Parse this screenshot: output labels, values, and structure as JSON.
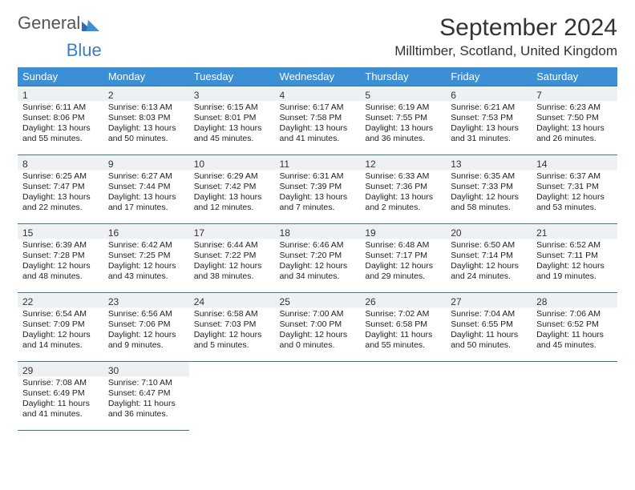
{
  "logo": {
    "text1": "General",
    "text2": "Blue"
  },
  "title": "September 2024",
  "subtitle": "Milltimber, Scotland, United Kingdom",
  "colors": {
    "header_bg": "#3b8fd4",
    "header_text": "#ffffff",
    "rule": "#3b6fa8",
    "daystrip": "#eef1f4",
    "brand_blue": "#3b7fc4",
    "brand_gray": "#555555"
  },
  "day_headers": [
    "Sunday",
    "Monday",
    "Tuesday",
    "Wednesday",
    "Thursday",
    "Friday",
    "Saturday"
  ],
  "weeks": [
    [
      {
        "n": "1",
        "sr": "6:11 AM",
        "ss": "8:06 PM",
        "dl": "13 hours and 55 minutes."
      },
      {
        "n": "2",
        "sr": "6:13 AM",
        "ss": "8:03 PM",
        "dl": "13 hours and 50 minutes."
      },
      {
        "n": "3",
        "sr": "6:15 AM",
        "ss": "8:01 PM",
        "dl": "13 hours and 45 minutes."
      },
      {
        "n": "4",
        "sr": "6:17 AM",
        "ss": "7:58 PM",
        "dl": "13 hours and 41 minutes."
      },
      {
        "n": "5",
        "sr": "6:19 AM",
        "ss": "7:55 PM",
        "dl": "13 hours and 36 minutes."
      },
      {
        "n": "6",
        "sr": "6:21 AM",
        "ss": "7:53 PM",
        "dl": "13 hours and 31 minutes."
      },
      {
        "n": "7",
        "sr": "6:23 AM",
        "ss": "7:50 PM",
        "dl": "13 hours and 26 minutes."
      }
    ],
    [
      {
        "n": "8",
        "sr": "6:25 AM",
        "ss": "7:47 PM",
        "dl": "13 hours and 22 minutes."
      },
      {
        "n": "9",
        "sr": "6:27 AM",
        "ss": "7:44 PM",
        "dl": "13 hours and 17 minutes."
      },
      {
        "n": "10",
        "sr": "6:29 AM",
        "ss": "7:42 PM",
        "dl": "13 hours and 12 minutes."
      },
      {
        "n": "11",
        "sr": "6:31 AM",
        "ss": "7:39 PM",
        "dl": "13 hours and 7 minutes."
      },
      {
        "n": "12",
        "sr": "6:33 AM",
        "ss": "7:36 PM",
        "dl": "13 hours and 2 minutes."
      },
      {
        "n": "13",
        "sr": "6:35 AM",
        "ss": "7:33 PM",
        "dl": "12 hours and 58 minutes."
      },
      {
        "n": "14",
        "sr": "6:37 AM",
        "ss": "7:31 PM",
        "dl": "12 hours and 53 minutes."
      }
    ],
    [
      {
        "n": "15",
        "sr": "6:39 AM",
        "ss": "7:28 PM",
        "dl": "12 hours and 48 minutes."
      },
      {
        "n": "16",
        "sr": "6:42 AM",
        "ss": "7:25 PM",
        "dl": "12 hours and 43 minutes."
      },
      {
        "n": "17",
        "sr": "6:44 AM",
        "ss": "7:22 PM",
        "dl": "12 hours and 38 minutes."
      },
      {
        "n": "18",
        "sr": "6:46 AM",
        "ss": "7:20 PM",
        "dl": "12 hours and 34 minutes."
      },
      {
        "n": "19",
        "sr": "6:48 AM",
        "ss": "7:17 PM",
        "dl": "12 hours and 29 minutes."
      },
      {
        "n": "20",
        "sr": "6:50 AM",
        "ss": "7:14 PM",
        "dl": "12 hours and 24 minutes."
      },
      {
        "n": "21",
        "sr": "6:52 AM",
        "ss": "7:11 PM",
        "dl": "12 hours and 19 minutes."
      }
    ],
    [
      {
        "n": "22",
        "sr": "6:54 AM",
        "ss": "7:09 PM",
        "dl": "12 hours and 14 minutes."
      },
      {
        "n": "23",
        "sr": "6:56 AM",
        "ss": "7:06 PM",
        "dl": "12 hours and 9 minutes."
      },
      {
        "n": "24",
        "sr": "6:58 AM",
        "ss": "7:03 PM",
        "dl": "12 hours and 5 minutes."
      },
      {
        "n": "25",
        "sr": "7:00 AM",
        "ss": "7:00 PM",
        "dl": "12 hours and 0 minutes."
      },
      {
        "n": "26",
        "sr": "7:02 AM",
        "ss": "6:58 PM",
        "dl": "11 hours and 55 minutes."
      },
      {
        "n": "27",
        "sr": "7:04 AM",
        "ss": "6:55 PM",
        "dl": "11 hours and 50 minutes."
      },
      {
        "n": "28",
        "sr": "7:06 AM",
        "ss": "6:52 PM",
        "dl": "11 hours and 45 minutes."
      }
    ],
    [
      {
        "n": "29",
        "sr": "7:08 AM",
        "ss": "6:49 PM",
        "dl": "11 hours and 41 minutes."
      },
      {
        "n": "30",
        "sr": "7:10 AM",
        "ss": "6:47 PM",
        "dl": "11 hours and 36 minutes."
      },
      null,
      null,
      null,
      null,
      null
    ]
  ],
  "labels": {
    "sunrise": "Sunrise:",
    "sunset": "Sunset:",
    "daylight": "Daylight:"
  }
}
